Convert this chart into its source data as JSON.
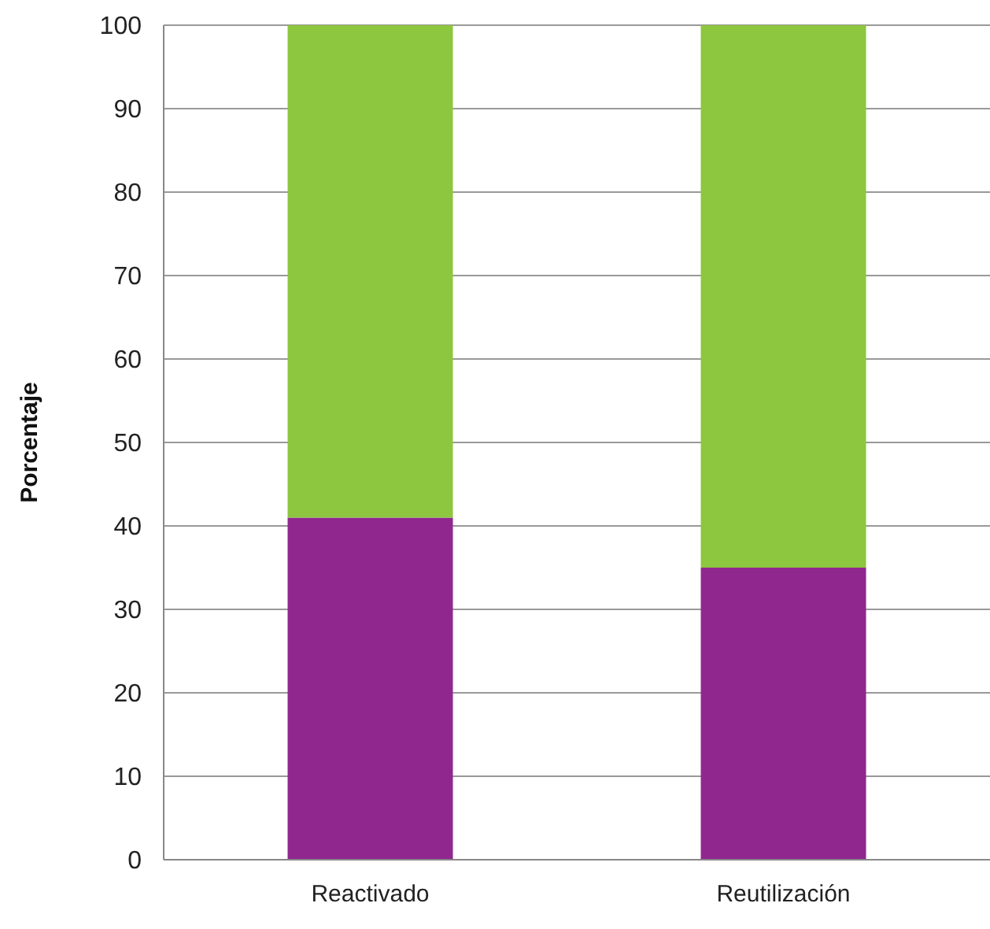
{
  "chart_data": {
    "type": "bar",
    "ylabel": "Porcentaje",
    "categories": [
      "Reactivado",
      "Reutilización"
    ],
    "stacked": true,
    "series": [
      {
        "color": "#90278e",
        "values": [
          41,
          35
        ]
      },
      {
        "color": "#8dc63f",
        "values": [
          59,
          65
        ]
      }
    ],
    "ylim": [
      0,
      100
    ],
    "yticks": [
      0,
      10,
      20,
      30,
      40,
      50,
      60,
      70,
      80,
      90,
      100
    ],
    "grid": "y",
    "legend": false
  }
}
